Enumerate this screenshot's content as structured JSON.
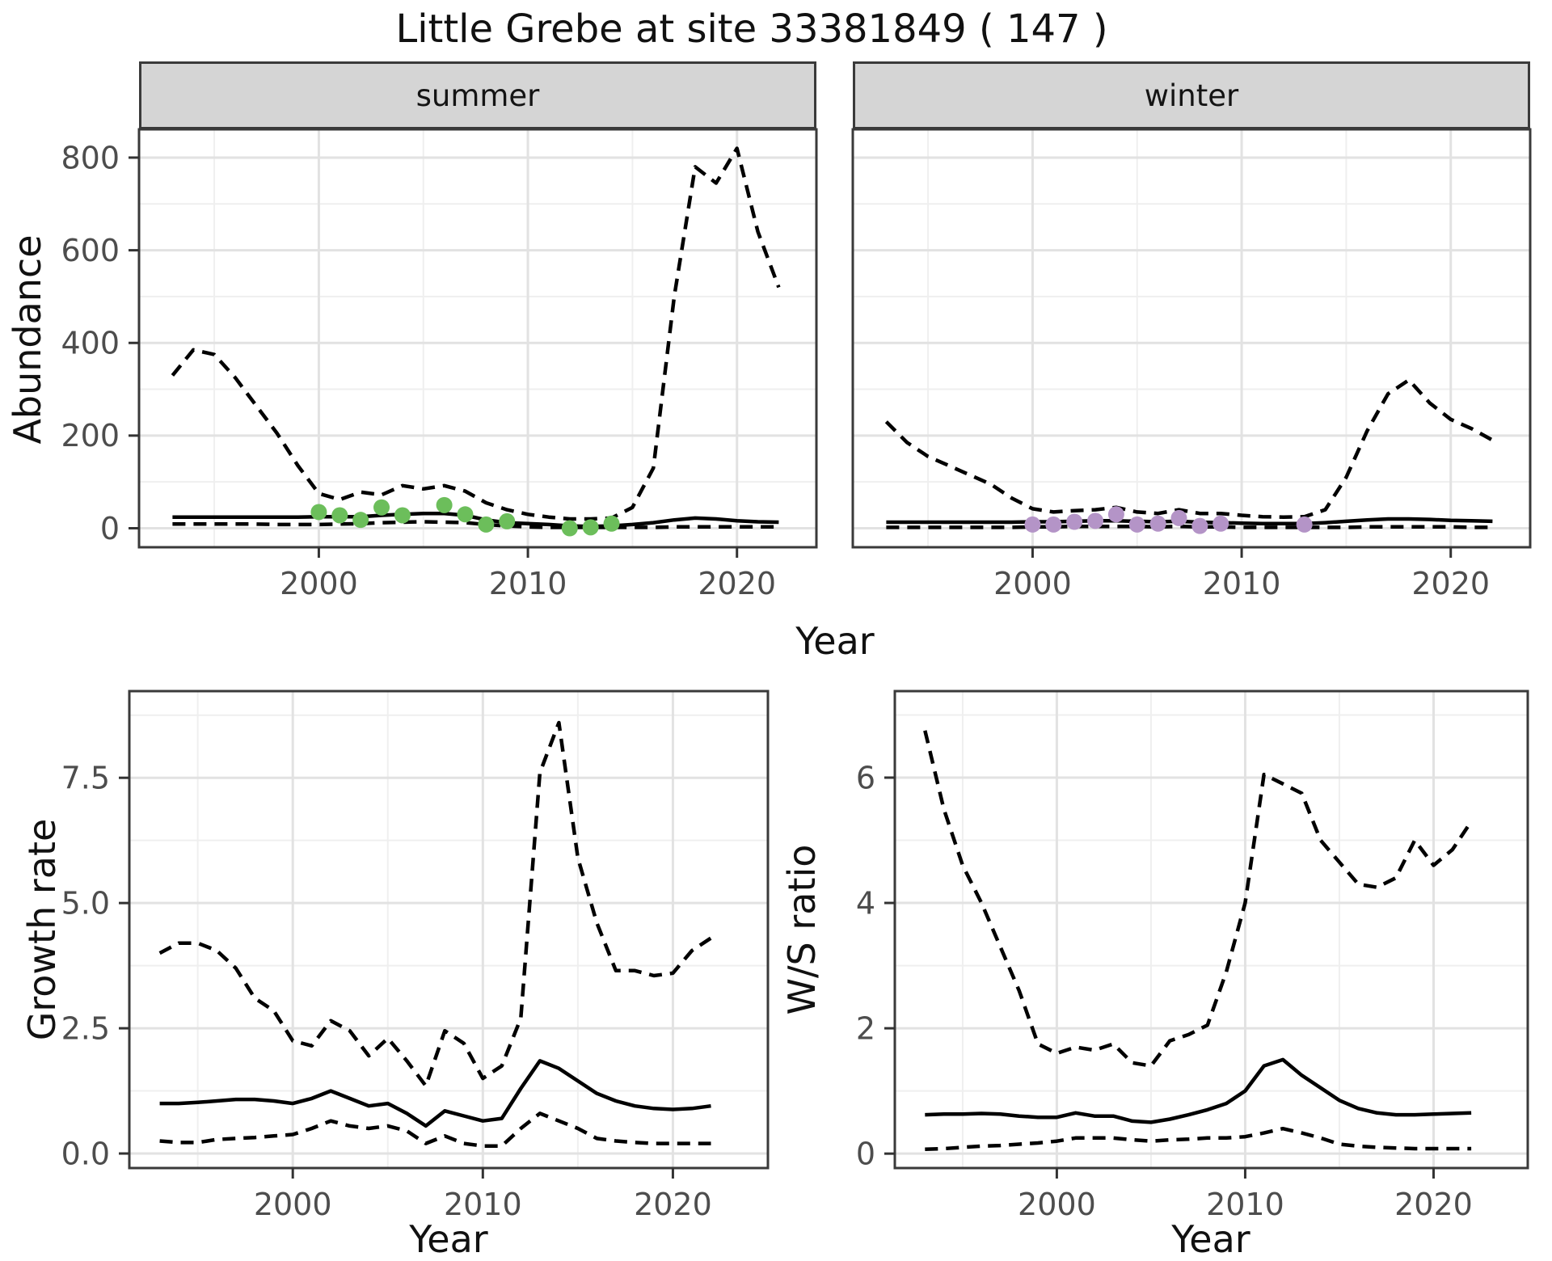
{
  "title": "Little Grebe at site 33381849 ( 147 )",
  "colors": {
    "summer_point": "#6CBE5B",
    "winter_point": "#B494C7",
    "line": "#000000",
    "strip_background": "#D5D5D5",
    "panel_border": "#3A3A3A",
    "grid_major": "#E2E2E2",
    "grid_minor": "#EFEFEF",
    "tick_label": "#4D4D4D"
  },
  "chart_data": [
    {
      "panel": "summer-abundance",
      "facet": "summer",
      "type": "line",
      "xlabel": "Year",
      "ylabel": "Abundance",
      "x": [
        1993,
        1994,
        1995,
        1996,
        1997,
        1998,
        1999,
        2000,
        2001,
        2002,
        2003,
        2004,
        2005,
        2006,
        2007,
        2008,
        2009,
        2010,
        2011,
        2012,
        2013,
        2014,
        2015,
        2016,
        2017,
        2018,
        2019,
        2020,
        2021,
        2022
      ],
      "series": [
        {
          "name": "upper_ci",
          "style": "dashed",
          "values": [
            330,
            385,
            375,
            325,
            265,
            205,
            135,
            75,
            62,
            78,
            72,
            92,
            85,
            92,
            80,
            55,
            40,
            30,
            24,
            20,
            20,
            22,
            45,
            130,
            500,
            780,
            745,
            820,
            640,
            520
          ]
        },
        {
          "name": "mean",
          "style": "solid",
          "values": [
            24,
            24,
            24,
            24,
            24,
            24,
            24,
            25,
            25,
            25,
            28,
            30,
            32,
            32,
            28,
            18,
            12,
            10,
            8,
            5,
            4,
            5,
            8,
            12,
            18,
            22,
            20,
            16,
            14,
            13
          ]
        },
        {
          "name": "lower_ci",
          "style": "dashed",
          "values": [
            9,
            9,
            9,
            9,
            9,
            8,
            8,
            8,
            9,
            10,
            12,
            13,
            14,
            13,
            12,
            8,
            5,
            3,
            2,
            2,
            2,
            2,
            2,
            2,
            3,
            3,
            3,
            3,
            3,
            3
          ]
        }
      ],
      "points": {
        "x": [
          2000,
          2001,
          2002,
          2003,
          2004,
          2006,
          2007,
          2008,
          2009,
          2012,
          2013,
          2014
        ],
        "y": [
          35,
          28,
          18,
          45,
          28,
          50,
          30,
          8,
          15,
          0,
          2,
          10
        ],
        "color_key": "summer_point"
      },
      "xlim": [
        1991.4,
        2023.8
      ],
      "ylim": [
        -41,
        861
      ],
      "xticks": [
        2000,
        2010,
        2020
      ],
      "xtick_labels": [
        "2000",
        "2010",
        "2020"
      ],
      "xminor": [
        1995,
        2005,
        2015
      ],
      "yticks": [
        0,
        200,
        400,
        600,
        800
      ],
      "ytick_labels": [
        "0",
        "200",
        "400",
        "600",
        "800"
      ],
      "yminor": [
        100,
        300,
        500,
        700
      ],
      "show_y_axis": true,
      "grid": true,
      "legend": "none"
    },
    {
      "panel": "winter-abundance",
      "facet": "winter",
      "type": "line",
      "xlabel": "Year",
      "ylabel": "Abundance",
      "x": [
        1993,
        1994,
        1995,
        1996,
        1997,
        1998,
        1999,
        2000,
        2001,
        2002,
        2003,
        2004,
        2005,
        2006,
        2007,
        2008,
        2009,
        2010,
        2011,
        2012,
        2013,
        2014,
        2015,
        2016,
        2017,
        2018,
        2019,
        2020,
        2021,
        2022
      ],
      "series": [
        {
          "name": "upper_ci",
          "style": "dashed",
          "values": [
            230,
            185,
            155,
            135,
            115,
            95,
            65,
            42,
            35,
            38,
            40,
            45,
            35,
            32,
            40,
            32,
            32,
            28,
            25,
            24,
            25,
            40,
            110,
            210,
            290,
            320,
            270,
            235,
            215,
            190
          ]
        },
        {
          "name": "mean",
          "style": "solid",
          "values": [
            13,
            13,
            13,
            13,
            13,
            13,
            13,
            14,
            14,
            15,
            16,
            16,
            15,
            14,
            15,
            13,
            12,
            11,
            10,
            10,
            10,
            12,
            15,
            18,
            20,
            20,
            19,
            17,
            16,
            15
          ]
        },
        {
          "name": "lower_ci",
          "style": "dashed",
          "values": [
            2,
            2,
            2,
            2,
            2,
            2,
            2,
            3,
            3,
            4,
            4,
            4,
            4,
            3,
            4,
            3,
            3,
            2,
            2,
            2,
            2,
            2,
            2,
            3,
            3,
            3,
            3,
            3,
            2,
            2
          ]
        }
      ],
      "points": {
        "x": [
          2000,
          2001,
          2002,
          2003,
          2004,
          2005,
          2006,
          2007,
          2008,
          2009,
          2013
        ],
        "y": [
          8,
          8,
          14,
          16,
          30,
          8,
          10,
          22,
          5,
          10,
          8
        ],
        "color_key": "winter_point"
      },
      "xlim": [
        1991.4,
        2023.8
      ],
      "ylim": [
        -41,
        861
      ],
      "xticks": [
        2000,
        2010,
        2020
      ],
      "xtick_labels": [
        "2000",
        "2010",
        "2020"
      ],
      "xminor": [
        1995,
        2005,
        2015
      ],
      "yticks": [
        0,
        200,
        400,
        600,
        800
      ],
      "ytick_labels": [
        "0",
        "200",
        "400",
        "600",
        "800"
      ],
      "yminor": [
        100,
        300,
        500,
        700
      ],
      "show_y_axis": false,
      "grid": true,
      "legend": "none"
    },
    {
      "panel": "growth-rate",
      "facet": "",
      "type": "line",
      "xlabel": "Year",
      "ylabel": "Growth rate",
      "x": [
        1993,
        1994,
        1995,
        1996,
        1997,
        1998,
        1999,
        2000,
        2001,
        2002,
        2003,
        2004,
        2005,
        2006,
        2007,
        2008,
        2009,
        2010,
        2011,
        2012,
        2013,
        2014,
        2015,
        2016,
        2017,
        2018,
        2019,
        2020,
        2021,
        2022
      ],
      "series": [
        {
          "name": "upper_ci",
          "style": "dashed",
          "values": [
            4.0,
            4.2,
            4.2,
            4.05,
            3.7,
            3.1,
            2.85,
            2.25,
            2.15,
            2.65,
            2.45,
            1.95,
            2.3,
            1.85,
            1.35,
            2.45,
            2.2,
            1.5,
            1.75,
            2.7,
            7.6,
            8.6,
            5.9,
            4.6,
            3.65,
            3.65,
            3.55,
            3.6,
            4.05,
            4.3
          ]
        },
        {
          "name": "mean",
          "style": "solid",
          "values": [
            1.0,
            1.0,
            1.02,
            1.05,
            1.08,
            1.08,
            1.05,
            1.0,
            1.1,
            1.25,
            1.1,
            0.95,
            1.0,
            0.8,
            0.55,
            0.85,
            0.75,
            0.65,
            0.7,
            1.3,
            1.85,
            1.7,
            1.45,
            1.2,
            1.05,
            0.95,
            0.9,
            0.88,
            0.9,
            0.95
          ]
        },
        {
          "name": "lower_ci",
          "style": "dashed",
          "values": [
            0.25,
            0.22,
            0.22,
            0.28,
            0.3,
            0.32,
            0.35,
            0.38,
            0.5,
            0.65,
            0.55,
            0.5,
            0.55,
            0.45,
            0.2,
            0.35,
            0.2,
            0.15,
            0.15,
            0.5,
            0.8,
            0.65,
            0.5,
            0.3,
            0.25,
            0.22,
            0.2,
            0.2,
            0.2,
            0.2
          ]
        }
      ],
      "xlim": [
        1991.4,
        2025.0
      ],
      "ylim": [
        -0.29,
        9.23
      ],
      "xticks": [
        2000,
        2010,
        2020
      ],
      "xtick_labels": [
        "2000",
        "2010",
        "2020"
      ],
      "xminor": [
        1995,
        2005,
        2015
      ],
      "yticks": [
        0.0,
        2.5,
        5.0,
        7.5
      ],
      "ytick_labels": [
        "0.0",
        "2.5",
        "5.0",
        "7.5"
      ],
      "yminor": [
        1.25,
        3.75,
        6.25,
        8.75
      ],
      "show_y_axis": true,
      "grid": true,
      "legend": "none"
    },
    {
      "panel": "ws-ratio",
      "facet": "",
      "type": "line",
      "xlabel": "Year",
      "ylabel": "W/S ratio",
      "x": [
        1993,
        1994,
        1995,
        1996,
        1997,
        1998,
        1999,
        2000,
        2001,
        2002,
        2003,
        2004,
        2005,
        2006,
        2007,
        2008,
        2009,
        2010,
        2011,
        2012,
        2013,
        2014,
        2015,
        2016,
        2017,
        2018,
        2019,
        2020,
        2021,
        2022
      ],
      "series": [
        {
          "name": "upper_ci",
          "style": "dashed",
          "values": [
            6.75,
            5.5,
            4.6,
            4.0,
            3.3,
            2.6,
            1.75,
            1.6,
            1.7,
            1.65,
            1.75,
            1.45,
            1.4,
            1.8,
            1.9,
            2.05,
            2.9,
            4.0,
            6.05,
            5.9,
            5.75,
            5.0,
            4.65,
            4.3,
            4.25,
            4.4,
            5.0,
            4.6,
            4.85,
            5.3
          ]
        },
        {
          "name": "mean",
          "style": "solid",
          "values": [
            0.62,
            0.63,
            0.63,
            0.64,
            0.63,
            0.6,
            0.58,
            0.58,
            0.65,
            0.6,
            0.6,
            0.52,
            0.5,
            0.55,
            0.62,
            0.7,
            0.8,
            1.0,
            1.4,
            1.5,
            1.25,
            1.05,
            0.85,
            0.72,
            0.65,
            0.62,
            0.62,
            0.63,
            0.64,
            0.65
          ]
        },
        {
          "name": "lower_ci",
          "style": "dashed",
          "values": [
            0.07,
            0.08,
            0.1,
            0.12,
            0.13,
            0.15,
            0.17,
            0.2,
            0.25,
            0.25,
            0.25,
            0.22,
            0.2,
            0.22,
            0.23,
            0.25,
            0.25,
            0.27,
            0.33,
            0.4,
            0.33,
            0.25,
            0.15,
            0.12,
            0.1,
            0.09,
            0.08,
            0.08,
            0.08,
            0.08
          ]
        }
      ],
      "xlim": [
        1991.4,
        2025.0
      ],
      "ylim": [
        -0.23,
        7.38
      ],
      "xticks": [
        2000,
        2010,
        2020
      ],
      "xtick_labels": [
        "2000",
        "2010",
        "2020"
      ],
      "xminor": [
        1995,
        2005,
        2015
      ],
      "yticks": [
        0,
        2,
        4,
        6
      ],
      "ytick_labels": [
        "0",
        "2",
        "4",
        "6"
      ],
      "yminor": [
        1,
        3,
        5,
        7
      ],
      "show_y_axis": true,
      "grid": true,
      "legend": "none"
    }
  ]
}
